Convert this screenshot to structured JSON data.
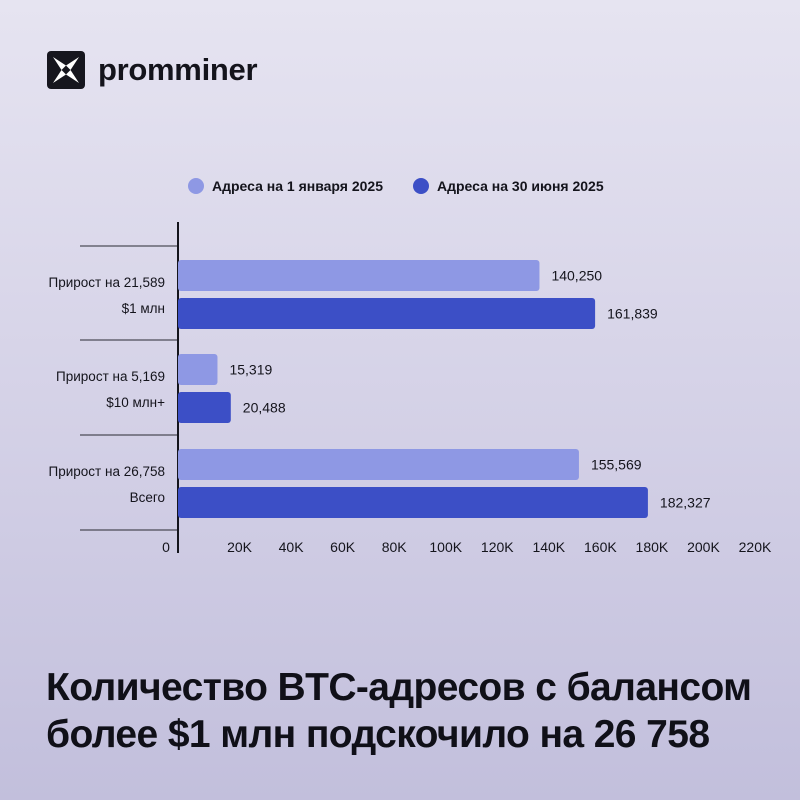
{
  "brand": {
    "name": "promminer",
    "logo_icon": "x-star-logo-icon"
  },
  "headline": {
    "line1": "Количество BTC-адресов с балансом",
    "line2": "более $1 млн подскочило на 26 758"
  },
  "chart_data": {
    "type": "bar",
    "orientation": "horizontal",
    "categories": [
      {
        "line1": "Прирост на 21,589",
        "line2": "$1 млн"
      },
      {
        "line1": "Прирост на 5,169",
        "line2": "$10 млн+"
      },
      {
        "line1": "Прирост на 26,758",
        "line2": "Всего"
      }
    ],
    "series": [
      {
        "name": "Адреса на 1 января 2025",
        "color": "#8e98e4",
        "values": [
          140250,
          15319,
          155569
        ],
        "labels": [
          "140,250",
          "15,319",
          "155,569"
        ]
      },
      {
        "name": "Адреса на 30 июня 2025",
        "color": "#3c4fc6",
        "values": [
          161839,
          20488,
          182327
        ],
        "labels": [
          "161,839",
          "20,488",
          "182,327"
        ]
      }
    ],
    "xlim": [
      0,
      220000
    ],
    "xticks": [
      {
        "value": 0,
        "label": "0"
      },
      {
        "value": 20000,
        "label": "20K"
      },
      {
        "value": 40000,
        "label": "40K"
      },
      {
        "value": 60000,
        "label": "60K"
      },
      {
        "value": 80000,
        "label": "80K"
      },
      {
        "value": 100000,
        "label": "100K"
      },
      {
        "value": 120000,
        "label": "120K"
      },
      {
        "value": 140000,
        "label": "140K"
      },
      {
        "value": 160000,
        "label": "160K"
      },
      {
        "value": 180000,
        "label": "180K"
      },
      {
        "value": 200000,
        "label": "200K"
      },
      {
        "value": 220000,
        "label": "220K"
      }
    ],
    "legend_position": "top",
    "grid": false
  }
}
